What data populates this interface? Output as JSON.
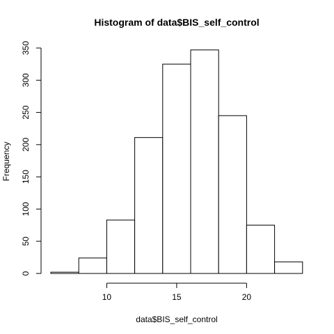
{
  "chart_data": {
    "type": "bar",
    "title": "Histogram of data$BIS_self_control",
    "xlabel": "data$BIS_self_control",
    "ylabel": "Frequency",
    "bins": [
      {
        "start": 6,
        "end": 8,
        "count": 2
      },
      {
        "start": 8,
        "end": 10,
        "count": 24
      },
      {
        "start": 10,
        "end": 12,
        "count": 83
      },
      {
        "start": 12,
        "end": 14,
        "count": 211
      },
      {
        "start": 14,
        "end": 16,
        "count": 325
      },
      {
        "start": 16,
        "end": 18,
        "count": 347
      },
      {
        "start": 18,
        "end": 20,
        "count": 245
      },
      {
        "start": 20,
        "end": 22,
        "count": 75
      },
      {
        "start": 22,
        "end": 24,
        "count": 18
      }
    ],
    "xlim": [
      6,
      24
    ],
    "ylim": [
      0,
      350
    ],
    "x_ticks": [
      10,
      15,
      20
    ],
    "y_ticks": [
      0,
      50,
      100,
      150,
      200,
      250,
      300,
      350
    ],
    "grid": false,
    "legend": "none",
    "bar_fill": "#ffffff",
    "bar_stroke": "#000000"
  }
}
